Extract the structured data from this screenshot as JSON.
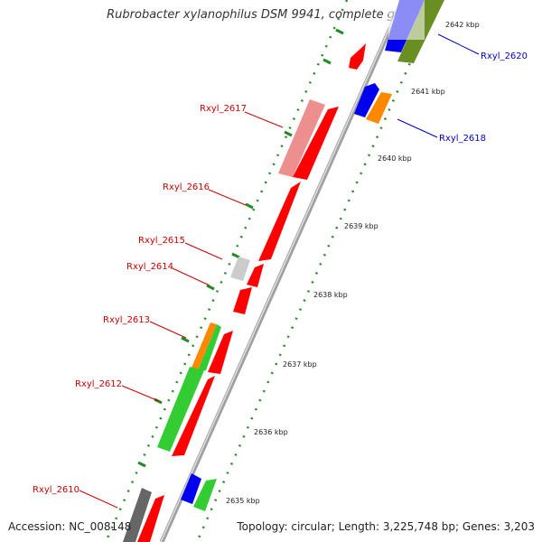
{
  "title": "Rubrobacter xylanophilus DSM 9941, complete genome",
  "footer": {
    "accession": "Accession: NC_008148",
    "summary": "Topology: circular; Length: 3,225,748 bp; Genes: 3,203"
  },
  "colors": {
    "red": "#ff0000",
    "pink": "#ee8f8f",
    "green": "#33cc33",
    "olive": "#6b8e23",
    "blue": "#0000ee",
    "orange": "#ff8800",
    "grey": "#bbbbbb",
    "dark_grey": "#666666",
    "label_red": "#cc0000",
    "label_blue": "#0000cc",
    "tick_green": "#228b22",
    "backbone": "#999999"
  },
  "scale_labels": [
    "2642 kbp",
    "2641 kbp",
    "2640 kbp",
    "2639 kbp",
    "2638 kbp",
    "2637 kbp",
    "2636 kbp",
    "2635 kbp"
  ],
  "gene_labels": [
    {
      "text": "Rxyl_2620",
      "color": "blue"
    },
    {
      "text": "Rxyl_2618",
      "color": "blue"
    },
    {
      "text": "Rxyl_2617",
      "color": "red"
    },
    {
      "text": "Rxyl_2616",
      "color": "red"
    },
    {
      "text": "Rxyl_2615",
      "color": "red"
    },
    {
      "text": "Rxyl_2614",
      "color": "red"
    },
    {
      "text": "Rxyl_2613",
      "color": "red"
    },
    {
      "text": "Rxyl_2612",
      "color": "red"
    },
    {
      "text": "Rxyl_2610",
      "color": "red"
    }
  ]
}
